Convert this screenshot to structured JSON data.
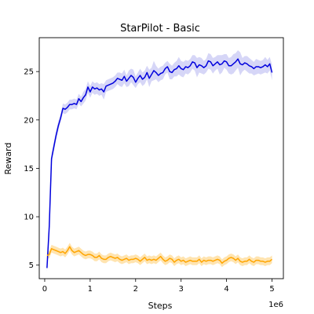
{
  "chart_data": {
    "type": "line",
    "title": "StarPilot - Basic",
    "xlabel": "Steps",
    "ylabel": "Reward",
    "x_multiplier_label": "1e6",
    "xlim": [
      -0.12,
      5.25
    ],
    "ylim": [
      3.6,
      28.5
    ],
    "x_ticks": [
      0,
      1,
      2,
      3,
      4,
      5
    ],
    "y_ticks": [
      5,
      10,
      15,
      20,
      25
    ],
    "x_tick_labels": [
      "0",
      "1",
      "2",
      "3",
      "4",
      "5"
    ],
    "y_tick_labels": [
      "5",
      "10",
      "15",
      "20",
      "25"
    ],
    "grid": false,
    "legend": "none",
    "x": [
      0.05,
      0.1,
      0.15,
      0.2,
      0.25,
      0.3,
      0.35,
      0.4,
      0.45,
      0.5,
      0.55,
      0.6,
      0.65,
      0.7,
      0.75,
      0.8,
      0.85,
      0.9,
      0.95,
      1.0,
      1.05,
      1.1,
      1.15,
      1.2,
      1.25,
      1.3,
      1.35,
      1.4,
      1.45,
      1.5,
      1.55,
      1.6,
      1.65,
      1.7,
      1.75,
      1.8,
      1.85,
      1.9,
      1.95,
      2.0,
      2.05,
      2.1,
      2.15,
      2.2,
      2.25,
      2.3,
      2.35,
      2.4,
      2.45,
      2.5,
      2.55,
      2.6,
      2.65,
      2.7,
      2.75,
      2.8,
      2.85,
      2.9,
      2.95,
      3.0,
      3.05,
      3.1,
      3.15,
      3.2,
      3.25,
      3.3,
      3.35,
      3.4,
      3.45,
      3.5,
      3.55,
      3.6,
      3.65,
      3.7,
      3.75,
      3.8,
      3.85,
      3.9,
      3.95,
      4.0,
      4.05,
      4.1,
      4.15,
      4.2,
      4.25,
      4.3,
      4.35,
      4.4,
      4.45,
      4.5,
      4.55,
      4.6,
      4.65,
      4.7,
      4.75,
      4.8,
      4.85,
      4.9,
      4.95,
      5.0
    ],
    "series": [
      {
        "color": "#0000dd",
        "band_color": "#c8c8f4",
        "values": [
          4.7,
          9.0,
          16.0,
          17.2,
          18.4,
          19.4,
          20.2,
          21.2,
          21.1,
          21.3,
          21.6,
          21.6,
          21.7,
          21.6,
          22.2,
          21.9,
          22.3,
          22.6,
          23.4,
          22.9,
          23.4,
          23.2,
          23.3,
          23.1,
          23.2,
          22.9,
          23.5,
          23.6,
          23.7,
          23.8,
          24.0,
          24.3,
          24.2,
          24.1,
          24.5,
          24.0,
          24.3,
          24.6,
          24.4,
          23.9,
          24.3,
          24.6,
          24.2,
          24.4,
          24.9,
          24.3,
          24.7,
          25.1,
          24.9,
          24.6,
          24.8,
          24.9,
          25.3,
          25.5,
          25.0,
          24.9,
          25.2,
          25.3,
          25.6,
          25.3,
          25.2,
          25.5,
          25.4,
          25.6,
          26.0,
          25.9,
          25.4,
          25.7,
          25.6,
          25.4,
          25.6,
          26.1,
          26.0,
          25.6,
          25.8,
          26.0,
          25.7,
          25.8,
          26.1,
          26.0,
          25.6,
          25.6,
          25.8,
          26.0,
          26.3,
          25.8,
          25.7,
          25.9,
          25.8,
          25.6,
          25.5,
          25.3,
          25.5,
          25.5,
          25.4,
          25.5,
          25.7,
          25.5,
          25.8,
          24.9
        ],
        "band": [
          0.4,
          0.6,
          0.5,
          0.5,
          0.5,
          0.5,
          0.4,
          0.5,
          0.5,
          0.5,
          0.5,
          0.5,
          0.5,
          0.5,
          0.5,
          0.5,
          0.6,
          0.6,
          0.6,
          0.6,
          0.6,
          0.6,
          0.6,
          0.6,
          0.6,
          0.8,
          0.6,
          0.6,
          0.6,
          0.6,
          0.6,
          0.6,
          0.7,
          0.7,
          0.7,
          0.6,
          0.8,
          0.7,
          0.8,
          0.6,
          0.6,
          0.7,
          0.7,
          0.7,
          0.7,
          0.9,
          0.7,
          1.0,
          0.7,
          0.7,
          0.7,
          0.7,
          0.6,
          0.6,
          0.8,
          0.7,
          0.7,
          0.8,
          0.9,
          0.8,
          0.8,
          0.7,
          0.7,
          0.7,
          0.7,
          0.8,
          1.0,
          0.8,
          0.8,
          0.7,
          0.7,
          0.8,
          0.8,
          0.8,
          0.7,
          0.7,
          1.0,
          0.9,
          0.7,
          0.8,
          0.8,
          0.9,
          1.0,
          0.9,
          0.9,
          1.2,
          0.7,
          0.7,
          0.8,
          0.8,
          0.7,
          0.7,
          0.8,
          0.7,
          0.7,
          0.7,
          0.8,
          0.7,
          0.7,
          0.8
        ]
      },
      {
        "color": "#ffa500",
        "band_color": "#ffdb96",
        "values": [
          6.0,
          6.1,
          6.7,
          6.6,
          6.5,
          6.4,
          6.3,
          6.4,
          6.2,
          6.5,
          6.9,
          6.5,
          6.3,
          6.4,
          6.5,
          6.3,
          6.1,
          6.0,
          6.1,
          6.1,
          6.0,
          5.8,
          5.8,
          6.0,
          5.7,
          5.6,
          5.6,
          5.8,
          5.9,
          5.8,
          5.7,
          5.8,
          5.6,
          5.5,
          5.6,
          5.7,
          5.5,
          5.6,
          5.6,
          5.7,
          5.6,
          5.4,
          5.6,
          5.8,
          5.5,
          5.6,
          5.5,
          5.6,
          5.5,
          5.7,
          5.9,
          5.6,
          5.4,
          5.5,
          5.7,
          5.6,
          5.3,
          5.5,
          5.6,
          5.4,
          5.5,
          5.3,
          5.4,
          5.5,
          5.4,
          5.4,
          5.4,
          5.6,
          5.3,
          5.5,
          5.4,
          5.5,
          5.5,
          5.4,
          5.5,
          5.6,
          5.5,
          5.2,
          5.4,
          5.5,
          5.7,
          5.8,
          5.7,
          5.5,
          5.7,
          5.4,
          5.3,
          5.4,
          5.4,
          5.6,
          5.4,
          5.3,
          5.5,
          5.5,
          5.4,
          5.4,
          5.3,
          5.4,
          5.4,
          5.6
        ],
        "band": [
          0.3,
          0.4,
          0.4,
          0.4,
          0.4,
          0.4,
          0.4,
          0.4,
          0.4,
          0.4,
          0.4,
          0.4,
          0.4,
          0.4,
          0.4,
          0.4,
          0.4,
          0.4,
          0.4,
          0.4,
          0.4,
          0.4,
          0.4,
          0.4,
          0.4,
          0.4,
          0.4,
          0.4,
          0.4,
          0.4,
          0.4,
          0.4,
          0.4,
          0.4,
          0.4,
          0.4,
          0.4,
          0.4,
          0.4,
          0.4,
          0.4,
          0.4,
          0.4,
          0.4,
          0.4,
          0.4,
          0.4,
          0.4,
          0.4,
          0.4,
          0.4,
          0.4,
          0.4,
          0.4,
          0.4,
          0.4,
          0.4,
          0.4,
          0.4,
          0.4,
          0.4,
          0.4,
          0.4,
          0.4,
          0.4,
          0.4,
          0.4,
          0.4,
          0.4,
          0.4,
          0.4,
          0.4,
          0.4,
          0.4,
          0.4,
          0.4,
          0.4,
          0.4,
          0.4,
          0.4,
          0.4,
          0.4,
          0.4,
          0.4,
          0.4,
          0.4,
          0.4,
          0.4,
          0.4,
          0.4,
          0.4,
          0.4,
          0.4,
          0.4,
          0.4,
          0.4,
          0.4,
          0.4,
          0.4,
          0.4
        ]
      }
    ]
  }
}
